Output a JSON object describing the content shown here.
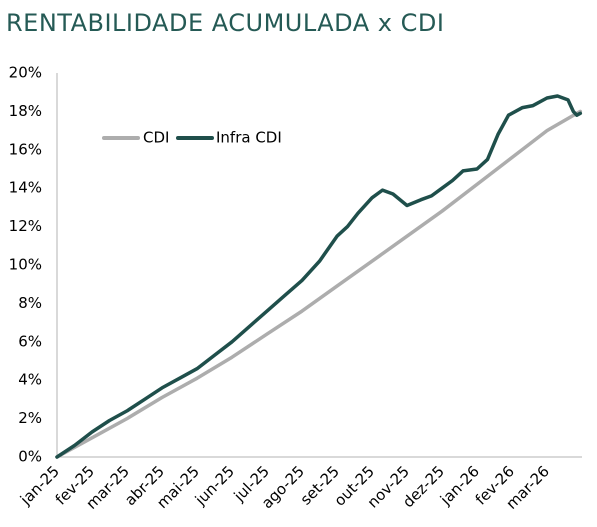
{
  "title": "RENTABILIDADE ACUMULADA x CDI",
  "colors": {
    "title": "#255a55",
    "cdi": "#adadad",
    "infra": "#1f4f4b",
    "axis": "#b3b3b3"
  },
  "legend": {
    "cdi_label": "CDI",
    "infra_label": "Infra CDI",
    "placement": "top-left inside plot"
  },
  "chart_data": {
    "type": "line",
    "title": "RENTABILIDADE ACUMULADA x CDI",
    "xlabel": "",
    "ylabel": "",
    "ylim": [
      0,
      20
    ],
    "y_unit": "%",
    "y_ticks": [
      "0%",
      "2%",
      "4%",
      "6%",
      "8%",
      "10%",
      "12%",
      "14%",
      "16%",
      "18%",
      "20%"
    ],
    "x_ticks": [
      "jan-25",
      "fev-25",
      "mar-25",
      "abr-25",
      "mai-25",
      "jun-25",
      "jul-25",
      "ago-25",
      "set-25",
      "out-25",
      "nov-25",
      "dez-25",
      "jan-26",
      "fev-26",
      "mar-26"
    ],
    "grid": false,
    "series": [
      {
        "name": "CDI",
        "x": [
          0,
          1,
          2,
          3,
          4,
          5,
          6,
          7,
          8,
          9,
          10,
          11,
          12,
          13,
          14,
          14.95
        ],
        "values": [
          0.0,
          1.0,
          2.0,
          3.1,
          4.1,
          5.2,
          6.4,
          7.6,
          8.9,
          10.2,
          11.5,
          12.8,
          14.2,
          15.6,
          17.0,
          18.0
        ]
      },
      {
        "name": "Infra CDI",
        "x": [
          0,
          0.5,
          1,
          1.5,
          2,
          2.5,
          3,
          3.5,
          4,
          4.5,
          5,
          5.5,
          6,
          6.5,
          7,
          7.5,
          8,
          8.3,
          8.6,
          9,
          9.3,
          9.6,
          10.0,
          10.4,
          10.7,
          11,
          11.3,
          11.6,
          12,
          12.3,
          12.6,
          12.9,
          13.3,
          13.6,
          14,
          14.3,
          14.6,
          14.75,
          14.85,
          14.95
        ],
        "values": [
          0.0,
          0.6,
          1.3,
          1.9,
          2.4,
          3.0,
          3.6,
          4.1,
          4.6,
          5.3,
          6.0,
          6.8,
          7.6,
          8.4,
          9.2,
          10.2,
          11.5,
          12.0,
          12.7,
          13.5,
          13.9,
          13.7,
          13.1,
          13.4,
          13.6,
          14.0,
          14.4,
          14.9,
          15.0,
          15.5,
          16.8,
          17.8,
          18.2,
          18.3,
          18.7,
          18.8,
          18.6,
          18.0,
          17.8,
          17.9
        ]
      }
    ]
  }
}
